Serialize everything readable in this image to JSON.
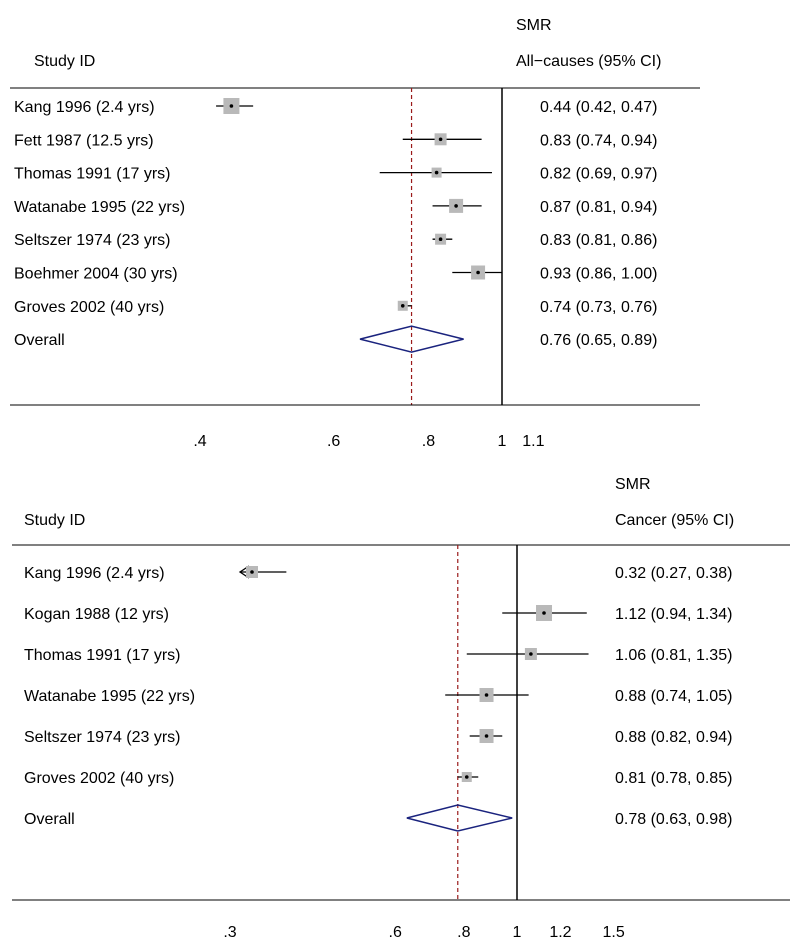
{
  "chart_data": [
    {
      "type": "forest",
      "scale": "log",
      "header": {
        "label_col": "Study ID",
        "value_col_line1": "SMR",
        "value_col_line2": "All−causes (95% CI)"
      },
      "ref_line": 1,
      "overall_line": 0.76,
      "x_ticks": [
        {
          "value": 0.4,
          "label": ".4"
        },
        {
          "value": 0.6,
          "label": ".6"
        },
        {
          "value": 0.8,
          "label": ".8"
        },
        {
          "value": 1.0,
          "label": "1"
        },
        {
          "value": 1.1,
          "label": "1.1"
        }
      ],
      "studies": [
        {
          "label": "Kang 1996 (2.4 yrs)",
          "est": 0.44,
          "lo": 0.42,
          "hi": 0.47,
          "text": "0.44 (0.42, 0.47)",
          "box": 16
        },
        {
          "label": "Fett 1987 (12.5 yrs)",
          "est": 0.83,
          "lo": 0.74,
          "hi": 0.94,
          "text": "0.83 (0.74, 0.94)",
          "box": 12
        },
        {
          "label": "Thomas 1991 (17 yrs)",
          "est": 0.82,
          "lo": 0.69,
          "hi": 0.97,
          "text": "0.82 (0.69, 0.97)",
          "box": 10
        },
        {
          "label": "Watanabe 1995 (22 yrs)",
          "est": 0.87,
          "lo": 0.81,
          "hi": 0.94,
          "text": "0.87 (0.81, 0.94)",
          "box": 14
        },
        {
          "label": "Seltszer 1974 (23 yrs)",
          "est": 0.83,
          "lo": 0.81,
          "hi": 0.86,
          "text": "0.83 (0.81, 0.86)",
          "box": 11
        },
        {
          "label": "Boehmer 2004 (30 yrs)",
          "est": 0.93,
          "lo": 0.86,
          "hi": 1.0,
          "text": "0.93 (0.86, 1.00)",
          "box": 14
        },
        {
          "label": "Groves 2002 (40 yrs)",
          "est": 0.74,
          "lo": 0.73,
          "hi": 0.76,
          "text": "0.74 (0.73, 0.76)",
          "box": 10
        }
      ],
      "overall": {
        "label": "Overall",
        "est": 0.76,
        "lo": 0.65,
        "hi": 0.89,
        "text": "0.76 (0.65, 0.89)"
      }
    },
    {
      "type": "forest",
      "scale": "log",
      "header": {
        "label_col": "Study ID",
        "value_col_line1": "SMR",
        "value_col_line2": "Cancer (95% CI)"
      },
      "ref_line": 1,
      "overall_line": 0.78,
      "x_ticks": [
        {
          "value": 0.3,
          "label": ".3"
        },
        {
          "value": 0.6,
          "label": ".6"
        },
        {
          "value": 0.8,
          "label": ".8"
        },
        {
          "value": 1.0,
          "label": "1"
        },
        {
          "value": 1.2,
          "label": "1.2"
        },
        {
          "value": 1.5,
          "label": "1.5"
        }
      ],
      "studies": [
        {
          "label": "Kang 1996 (2.4 yrs)",
          "est": 0.32,
          "lo": 0.27,
          "hi": 0.38,
          "text": "0.32 (0.27, 0.38)",
          "box": 12,
          "clipped_left": true
        },
        {
          "label": "Kogan 1988 (12 yrs)",
          "est": 1.12,
          "lo": 0.94,
          "hi": 1.34,
          "text": "1.12 (0.94, 1.34)",
          "box": 16
        },
        {
          "label": "Thomas 1991 (17 yrs)",
          "est": 1.06,
          "lo": 0.81,
          "hi": 1.35,
          "text": "1.06 (0.81, 1.35)",
          "box": 12
        },
        {
          "label": "Watanabe 1995 (22 yrs)",
          "est": 0.88,
          "lo": 0.74,
          "hi": 1.05,
          "text": "0.88 (0.74, 1.05)",
          "box": 14
        },
        {
          "label": "Seltszer 1974 (23 yrs)",
          "est": 0.88,
          "lo": 0.82,
          "hi": 0.94,
          "text": "0.88 (0.82, 0.94)",
          "box": 14
        },
        {
          "label": "Groves 2002 (40 yrs)",
          "est": 0.81,
          "lo": 0.78,
          "hi": 0.85,
          "text": "0.81 (0.78, 0.85)",
          "box": 10
        }
      ],
      "overall": {
        "label": "Overall",
        "est": 0.78,
        "lo": 0.63,
        "hi": 0.98,
        "text": "0.78 (0.63, 0.98)"
      }
    }
  ]
}
